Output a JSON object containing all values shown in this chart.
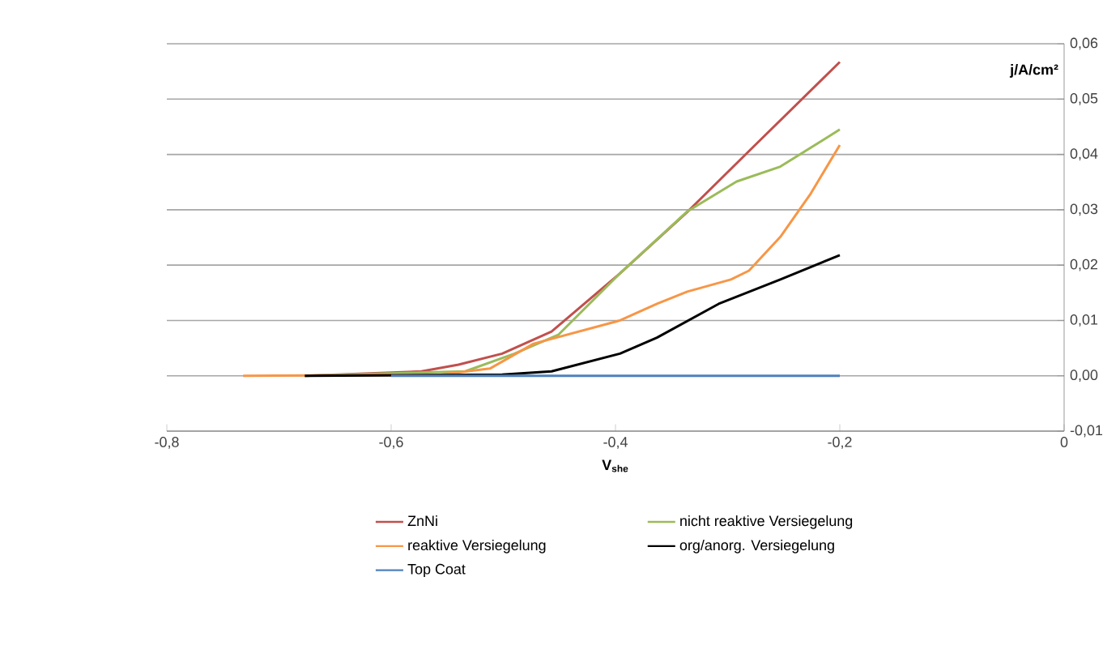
{
  "chart_data": {
    "type": "line",
    "xlabel": "V$_{she}$",
    "ylabel": "j/A/cm²",
    "xlim": [
      -0.8,
      0
    ],
    "ylim": [
      -0.01,
      0.06
    ],
    "xticks": [
      {
        "value": -0.8,
        "label": "-0,8"
      },
      {
        "value": -0.6,
        "label": "-0,6"
      },
      {
        "value": -0.4,
        "label": "-0,4"
      },
      {
        "value": -0.2,
        "label": "-0,2"
      },
      {
        "value": 0,
        "label": "0"
      }
    ],
    "yticks": [
      {
        "value": -0.01,
        "label": "-0,01"
      },
      {
        "value": 0,
        "label": "0,00"
      },
      {
        "value": 0.01,
        "label": "0,01"
      },
      {
        "value": 0.02,
        "label": "0,02"
      },
      {
        "value": 0.03,
        "label": "0,03"
      },
      {
        "value": 0.04,
        "label": "0,04"
      },
      {
        "value": 0.05,
        "label": "0,05"
      },
      {
        "value": 0.06,
        "label": "0,06"
      }
    ],
    "grid": "y",
    "legend": "bottom",
    "marker": "none",
    "line_style": "solid",
    "series": [
      {
        "name": "ZnNi",
        "color": "#c0504d",
        "x": [
          -0.677,
          -0.573,
          -0.54,
          -0.501,
          -0.457,
          -0.396,
          -0.336,
          -0.281,
          -0.2
        ],
        "values": [
          0,
          0.0008,
          0.002,
          0.004,
          0.008,
          0.0185,
          0.0296,
          0.0406,
          0.0567
        ]
      },
      {
        "name": "nicht reaktive Versiegelung",
        "color": "#9bbb59",
        "x": [
          -0.677,
          -0.534,
          -0.49,
          -0.451,
          -0.396,
          -0.336,
          -0.292,
          -0.253,
          -0.2
        ],
        "values": [
          0,
          0.0008,
          0.004,
          0.0074,
          0.0185,
          0.0297,
          0.0351,
          0.0378,
          0.0445
        ]
      },
      {
        "name": "reaktive Versiegelung",
        "color": "#f79646",
        "x": [
          -0.732,
          -0.556,
          -0.512,
          -0.473,
          -0.396,
          -0.363,
          -0.336,
          -0.297,
          -0.281,
          -0.253,
          -0.226,
          -0.2
        ],
        "values": [
          0,
          0.0002,
          0.0013,
          0.0058,
          0.01,
          0.013,
          0.0152,
          0.0174,
          0.019,
          0.0251,
          0.0329,
          0.0417
        ]
      },
      {
        "name": "org/anorg. Versiegelung",
        "color": "#000000",
        "x": [
          -0.677,
          -0.501,
          -0.457,
          -0.396,
          -0.363,
          -0.308,
          -0.253,
          -0.2
        ],
        "values": [
          0,
          0.0002,
          0.0008,
          0.004,
          0.0069,
          0.013,
          0.0174,
          0.0218
        ]
      },
      {
        "name": "Top Coat",
        "color": "#4f81bd",
        "x": [
          -0.6,
          -0.2
        ],
        "values": [
          0,
          0
        ]
      }
    ]
  }
}
